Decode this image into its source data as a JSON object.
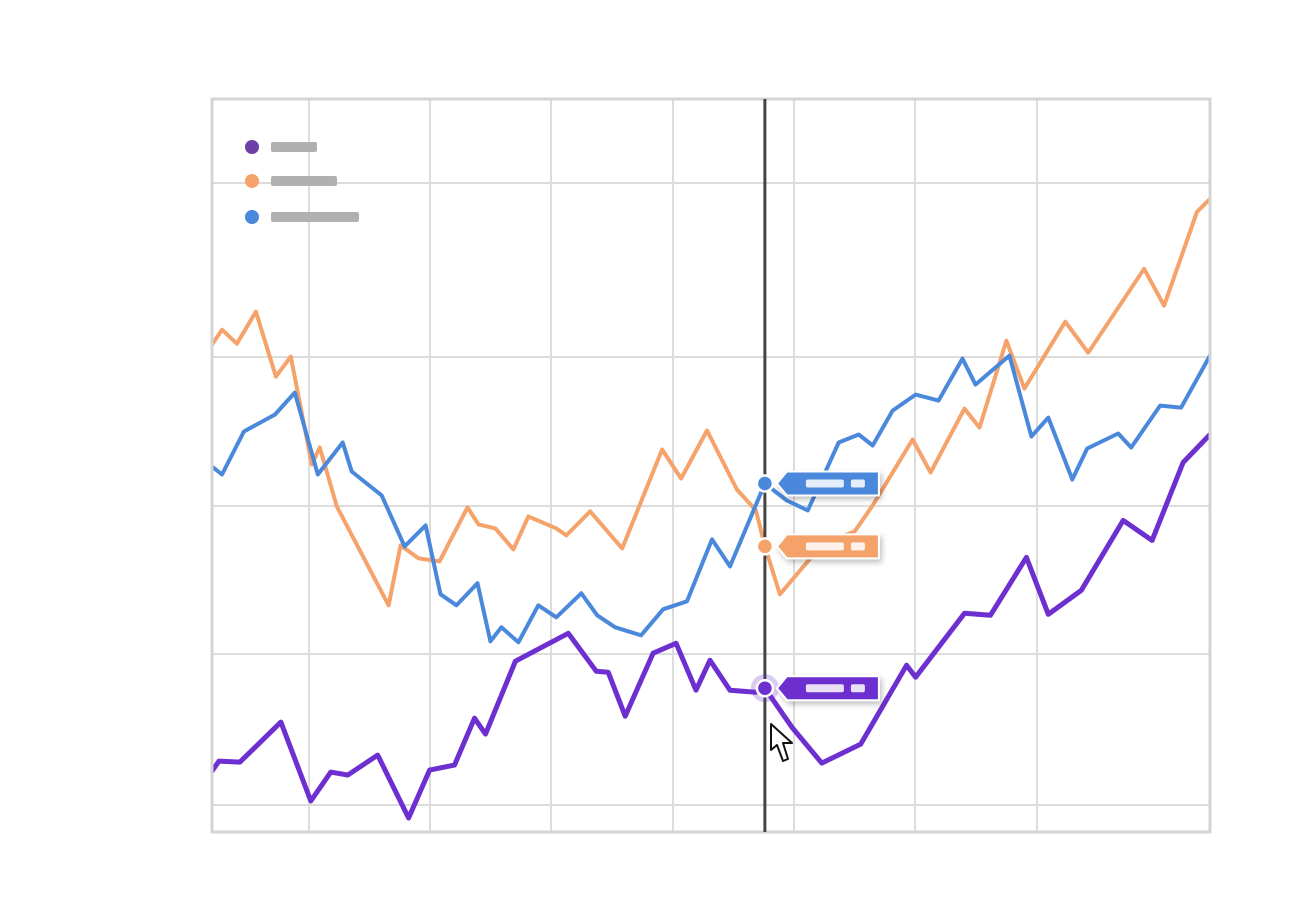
{
  "chart_data": {
    "type": "line",
    "title": "",
    "xlabel": "",
    "ylabel": "",
    "xlim": [
      0,
      1000
    ],
    "ylim": [
      0,
      734
    ],
    "grid": true,
    "legend": {
      "placement": "top-left",
      "entries": [
        {
          "series_index": 0,
          "label": ""
        },
        {
          "series_index": 1,
          "label": ""
        },
        {
          "series_index": 2,
          "label": ""
        }
      ]
    },
    "crosshair": {
      "x": 554
    },
    "series": [
      {
        "color": "#6D2FD0",
        "legend_color": "#6A3FA6",
        "points": [
          [
            0,
            61
          ],
          [
            7,
            71
          ],
          [
            28,
            70
          ],
          [
            69,
            110
          ],
          [
            99,
            31
          ],
          [
            119,
            60
          ],
          [
            136,
            57
          ],
          [
            166,
            77
          ],
          [
            197,
            14
          ],
          [
            218,
            62
          ],
          [
            243,
            67
          ],
          [
            263,
            114
          ],
          [
            274,
            98
          ],
          [
            304,
            171
          ],
          [
            357,
            199
          ],
          [
            385,
            161
          ],
          [
            397,
            160
          ],
          [
            414,
            116
          ],
          [
            442,
            179
          ],
          [
            465,
            189
          ],
          [
            485,
            142
          ],
          [
            499,
            172
          ],
          [
            519,
            142
          ],
          [
            545,
            140
          ],
          [
            554,
            144
          ],
          [
            581,
            105
          ],
          [
            611,
            69
          ],
          [
            650,
            88
          ],
          [
            696,
            167
          ],
          [
            705,
            155
          ],
          [
            754,
            219
          ],
          [
            780,
            217
          ],
          [
            816,
            275
          ],
          [
            838,
            218
          ],
          [
            871,
            242
          ],
          [
            913,
            312
          ],
          [
            942,
            292
          ],
          [
            973,
            370
          ],
          [
            1000,
            398
          ]
        ],
        "hover_point": [
          554,
          144
        ]
      },
      {
        "color": "#F5A26B",
        "legend_color": "#F5A26B",
        "points": [
          [
            0,
            488
          ],
          [
            10,
            503
          ],
          [
            25,
            489
          ],
          [
            44,
            521
          ],
          [
            64,
            456
          ],
          [
            79,
            476
          ],
          [
            100,
            368
          ],
          [
            108,
            385
          ],
          [
            125,
            326
          ],
          [
            177,
            227
          ],
          [
            189,
            287
          ],
          [
            207,
            274
          ],
          [
            228,
            271
          ],
          [
            256,
            325
          ],
          [
            267,
            308
          ],
          [
            284,
            304
          ],
          [
            302,
            283
          ],
          [
            317,
            316
          ],
          [
            345,
            304
          ],
          [
            355,
            297
          ],
          [
            379,
            321
          ],
          [
            411,
            284
          ],
          [
            451,
            383
          ],
          [
            470,
            354
          ],
          [
            496,
            402
          ],
          [
            526,
            343
          ],
          [
            545,
            322
          ],
          [
            554,
            286
          ],
          [
            569,
            238
          ],
          [
            602,
            277
          ],
          [
            620,
            291
          ],
          [
            644,
            301
          ],
          [
            662,
            327
          ],
          [
            702,
            393
          ],
          [
            720,
            360
          ],
          [
            754,
            424
          ],
          [
            769,
            405
          ],
          [
            796,
            492
          ],
          [
            814,
            444
          ],
          [
            855,
            511
          ],
          [
            878,
            480
          ],
          [
            934,
            564
          ],
          [
            954,
            527
          ],
          [
            987,
            621
          ],
          [
            1000,
            634
          ]
        ],
        "hover_point": [
          554,
          286
        ]
      },
      {
        "color": "#4A88DB",
        "legend_color": "#4A88DB",
        "points": [
          [
            0,
            366
          ],
          [
            10,
            358
          ],
          [
            32,
            401
          ],
          [
            63,
            418
          ],
          [
            83,
            440
          ],
          [
            106,
            358
          ],
          [
            131,
            390
          ],
          [
            140,
            361
          ],
          [
            170,
            337
          ],
          [
            193,
            286
          ],
          [
            214,
            307
          ],
          [
            229,
            238
          ],
          [
            245,
            227
          ],
          [
            266,
            249
          ],
          [
            279,
            191
          ],
          [
            290,
            205
          ],
          [
            307,
            190
          ],
          [
            327,
            227
          ],
          [
            345,
            215
          ],
          [
            370,
            239
          ],
          [
            386,
            217
          ],
          [
            404,
            205
          ],
          [
            430,
            197
          ],
          [
            452,
            223
          ],
          [
            476,
            231
          ],
          [
            501,
            293
          ],
          [
            519,
            266
          ],
          [
            554,
            349
          ],
          [
            576,
            332
          ],
          [
            597,
            322
          ],
          [
            628,
            390
          ],
          [
            648,
            398
          ],
          [
            662,
            387
          ],
          [
            682,
            422
          ],
          [
            705,
            438
          ],
          [
            728,
            432
          ],
          [
            752,
            474
          ],
          [
            765,
            448
          ],
          [
            799,
            477
          ],
          [
            821,
            396
          ],
          [
            838,
            415
          ],
          [
            862,
            353
          ],
          [
            877,
            384
          ],
          [
            908,
            399
          ],
          [
            921,
            385
          ],
          [
            950,
            427
          ],
          [
            971,
            425
          ],
          [
            1000,
            477
          ]
        ],
        "hover_point": [
          554,
          349
        ]
      }
    ]
  }
}
